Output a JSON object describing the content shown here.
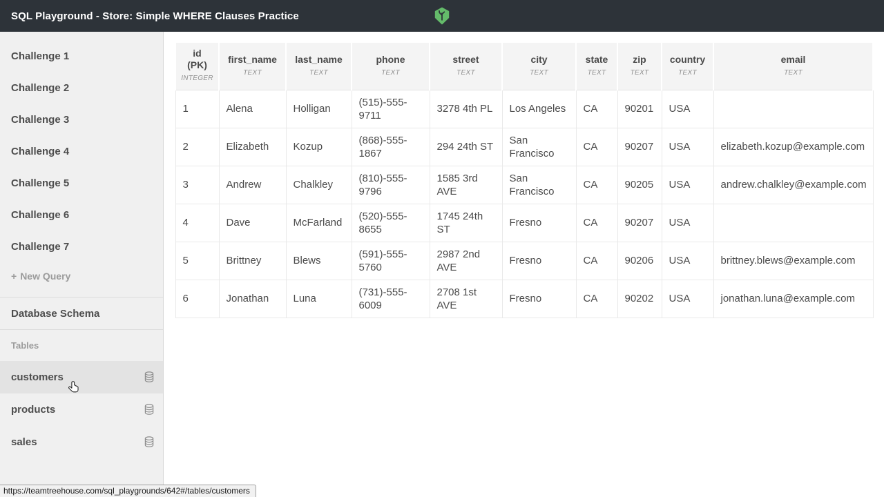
{
  "topbar": {
    "title": "SQL Playground - Store: Simple WHERE Clauses Practice"
  },
  "sidebar": {
    "challenges": [
      "Challenge 1",
      "Challenge 2",
      "Challenge 3",
      "Challenge 4",
      "Challenge 5",
      "Challenge 6",
      "Challenge 7"
    ],
    "new_query_plus": "+",
    "new_query_label": "New Query",
    "schema_heading": "Database Schema",
    "tables_label": "Tables",
    "tables": [
      {
        "label": "customers",
        "active": true
      },
      {
        "label": "products",
        "active": false
      },
      {
        "label": "sales",
        "active": false
      }
    ]
  },
  "table": {
    "columns": [
      {
        "name": "id (PK)",
        "type": "INTEGER"
      },
      {
        "name": "first_name",
        "type": "TEXT"
      },
      {
        "name": "last_name",
        "type": "TEXT"
      },
      {
        "name": "phone",
        "type": "TEXT"
      },
      {
        "name": "street",
        "type": "TEXT"
      },
      {
        "name": "city",
        "type": "TEXT"
      },
      {
        "name": "state",
        "type": "TEXT"
      },
      {
        "name": "zip",
        "type": "TEXT"
      },
      {
        "name": "country",
        "type": "TEXT"
      },
      {
        "name": "email",
        "type": "TEXT"
      }
    ],
    "rows": [
      [
        "1",
        "Alena",
        "Holligan",
        "(515)-555-9711",
        "3278 4th PL",
        "Los Angeles",
        "CA",
        "90201",
        "USA",
        ""
      ],
      [
        "2",
        "Elizabeth",
        "Kozup",
        "(868)-555-1867",
        "294 24th ST",
        "San Francisco",
        "CA",
        "90207",
        "USA",
        "elizabeth.kozup@example.com"
      ],
      [
        "3",
        "Andrew",
        "Chalkley",
        "(810)-555-9796",
        "1585 3rd AVE",
        "San Francisco",
        "CA",
        "90205",
        "USA",
        "andrew.chalkley@example.com"
      ],
      [
        "4",
        "Dave",
        "McFarland",
        "(520)-555-8655",
        "1745 24th ST",
        "Fresno",
        "CA",
        "90207",
        "USA",
        ""
      ],
      [
        "5",
        "Brittney",
        "Blews",
        "(591)-555-5760",
        "2987 2nd AVE",
        "Fresno",
        "CA",
        "90206",
        "USA",
        "brittney.blews@example.com"
      ],
      [
        "6",
        "Jonathan",
        "Luna",
        "(731)-555-6009",
        "2708 1st AVE",
        "Fresno",
        "CA",
        "90202",
        "USA",
        "jonathan.luna@example.com"
      ]
    ]
  },
  "status": {
    "url": "https://teamtreehouse.com/sql_playgrounds/642#/tables/customers"
  },
  "colors": {
    "topbar_bg": "#2d3339",
    "logo_green": "#64bb6a",
    "sidebar_bg": "#f0f0f0",
    "hover_row_bg": "#e3e3e3",
    "header_cell_bg": "#f4f4f4",
    "grid_border": "#e9e9e9",
    "text_primary": "#4d4d4d",
    "text_muted": "#9b9b9b"
  }
}
